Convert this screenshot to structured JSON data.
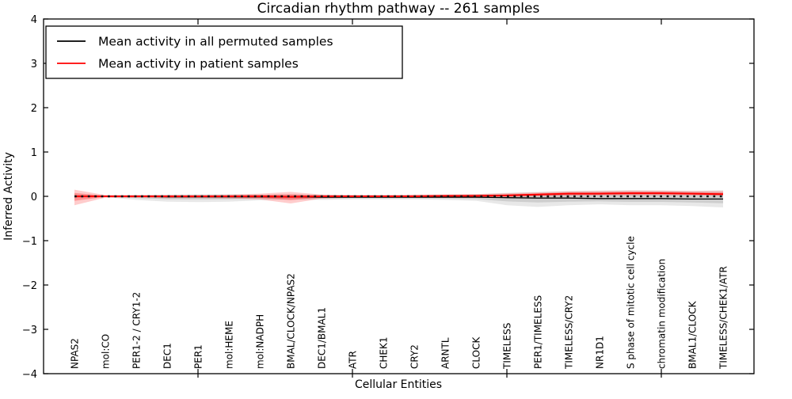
{
  "figure": {
    "background": "#ffffff",
    "frame_color": "#000000"
  },
  "chart_data": {
    "type": "line",
    "title": "Circadian rhythm pathway -- 261 samples",
    "xlabel": "Cellular Entities",
    "ylabel": "Inferred Activity",
    "ylim": [
      -4,
      4
    ],
    "xlim": [
      0,
      23
    ],
    "grid": false,
    "legend_position": "upper left",
    "yticks": [
      -4,
      -3,
      -2,
      -1,
      0,
      1,
      2,
      3,
      4
    ],
    "ytick_labels": [
      "−4",
      "−3",
      "−2",
      "−1",
      "0",
      "1",
      "2",
      "3",
      "4"
    ],
    "xticks_major": [
      5,
      10,
      15,
      20
    ],
    "x": [
      1,
      2,
      3,
      4,
      5,
      6,
      7,
      8,
      9,
      10,
      11,
      12,
      13,
      14,
      15,
      16,
      17,
      18,
      19,
      20,
      21,
      22
    ],
    "categories": [
      "NPAS2",
      "mol:CO",
      "PER1-2 / CRY1-2",
      "DEC1",
      "PER1",
      "mol:HEME",
      "mol:NADPH",
      "BMAL/CLOCK/NPAS2",
      "DEC1/BMAL1",
      "ATR",
      "CHEK1",
      "CRY2",
      "ARNTL",
      "CLOCK",
      "TIMELESS",
      "PER1/TIMELESS",
      "TIMELESS/CRY2",
      "NR1D1",
      "S phase of mitotic cell cycle",
      "chromatin modification",
      "BMAL1/CLOCK",
      "TIMELESS/CHEK1/ATR"
    ],
    "series": [
      {
        "name": "permuted",
        "label": "Mean activity in all permuted samples",
        "color": "#000000",
        "style": "solid",
        "width": 1.3,
        "values": [
          0,
          0,
          0,
          -0.01,
          -0.01,
          -0.01,
          -0.01,
          -0.01,
          -0.02,
          -0.02,
          -0.02,
          -0.02,
          -0.02,
          -0.02,
          -0.03,
          -0.04,
          -0.04,
          -0.05,
          -0.05,
          -0.05,
          -0.06,
          -0.06
        ]
      },
      {
        "name": "patient",
        "label": "Mean activity in patient samples",
        "color": "#ff0000",
        "style": "solid",
        "width": 2,
        "values": [
          0,
          0,
          0,
          0,
          0,
          0,
          0,
          -0.01,
          0,
          0,
          0,
          0,
          0.01,
          0.01,
          0.02,
          0.04,
          0.06,
          0.06,
          0.07,
          0.07,
          0.06,
          0.05
        ]
      }
    ],
    "reference_line": {
      "value": 0,
      "color": "#111111",
      "style": "dotted",
      "width": 2.4
    },
    "bands": [
      {
        "name": "permuted-std-band",
        "series": "permuted",
        "color_outer": "rgba(0,0,0,0.09)",
        "color_inner": "rgba(0,0,0,0.11)",
        "lower": [
          -0.04,
          -0.02,
          -0.08,
          -0.12,
          -0.13,
          -0.12,
          -0.09,
          -0.07,
          -0.08,
          -0.07,
          -0.07,
          -0.07,
          -0.08,
          -0.1,
          -0.2,
          -0.24,
          -0.2,
          -0.18,
          -0.2,
          -0.2,
          -0.22,
          -0.25
        ],
        "upper": [
          0.04,
          0.02,
          0.03,
          0.04,
          0.05,
          0.05,
          0.04,
          0.04,
          0.04,
          0.03,
          0.03,
          0.03,
          0.04,
          0.05,
          0.08,
          0.1,
          0.12,
          0.13,
          0.14,
          0.13,
          0.12,
          0.14
        ]
      },
      {
        "name": "patient-std-band",
        "series": "patient",
        "color_outer": "rgba(255,0,0,0.20)",
        "color_inner": "rgba(255,0,0,0.28)",
        "lower": [
          -0.2,
          -0.03,
          -0.03,
          -0.04,
          -0.04,
          -0.05,
          -0.07,
          -0.16,
          -0.05,
          -0.03,
          -0.03,
          -0.03,
          -0.03,
          -0.03,
          -0.02,
          0.0,
          0.01,
          0.02,
          0.02,
          0.02,
          0.02,
          0.01
        ],
        "upper": [
          0.15,
          0.03,
          0.03,
          0.03,
          0.03,
          0.04,
          0.06,
          0.1,
          0.04,
          0.03,
          0.03,
          0.04,
          0.04,
          0.05,
          0.07,
          0.09,
          0.11,
          0.12,
          0.13,
          0.13,
          0.12,
          0.12
        ]
      }
    ]
  },
  "legend": {
    "items": [
      {
        "label": "Mean activity in all permuted samples",
        "color": "#000000"
      },
      {
        "label": "Mean activity in patient samples",
        "color": "#ff0000"
      }
    ]
  }
}
